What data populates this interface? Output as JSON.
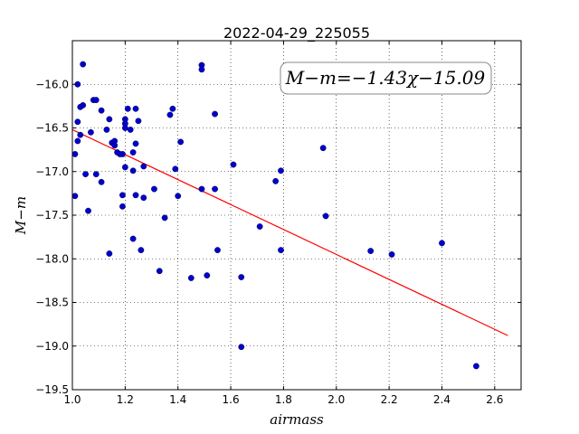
{
  "chart_data": {
    "type": "scatter",
    "title": "2022-04-29_225055",
    "xlabel": "airmass",
    "ylabel": "M−m",
    "xlim": [
      1.0,
      2.7
    ],
    "ylim": [
      -19.5,
      -15.5
    ],
    "y_inverted": true,
    "grid": true,
    "grid_style": "dotted",
    "x_ticks": [
      "1.0",
      "1.2",
      "1.4",
      "1.6",
      "1.8",
      "2.0",
      "2.2",
      "2.4",
      "2.6"
    ],
    "x_tick_values": [
      1.0,
      1.2,
      1.4,
      1.6,
      1.8,
      2.0,
      2.2,
      2.4,
      2.6
    ],
    "y_ticks": [
      "−16.0",
      "−16.5",
      "−17.0",
      "−17.5",
      "−18.0",
      "−18.5",
      "−19.0",
      "−19.5"
    ],
    "y_tick_values": [
      -16.0,
      -16.5,
      -17.0,
      -17.5,
      -18.0,
      -18.5,
      -19.0,
      -19.5
    ],
    "annotation": "M−m=−1.43χ−15.09",
    "annotation_placement": "top-right",
    "point_color": "#0000cc",
    "line_color": "#ff0000",
    "fit": {
      "slope": -1.43,
      "intercept": -15.09,
      "x_range": [
        1.0,
        2.65
      ]
    },
    "points": [
      [
        1.01,
        -17.28
      ],
      [
        1.01,
        -16.8
      ],
      [
        1.02,
        -16.65
      ],
      [
        1.02,
        -16.43
      ],
      [
        1.02,
        -16.0
      ],
      [
        1.03,
        -16.26
      ],
      [
        1.03,
        -16.58
      ],
      [
        1.04,
        -16.24
      ],
      [
        1.04,
        -15.77
      ],
      [
        1.05,
        -17.03
      ],
      [
        1.06,
        -17.45
      ],
      [
        1.07,
        -16.55
      ],
      [
        1.08,
        -16.18
      ],
      [
        1.09,
        -16.18
      ],
      [
        1.09,
        -17.03
      ],
      [
        1.11,
        -16.3
      ],
      [
        1.11,
        -17.12
      ],
      [
        1.13,
        -16.52
      ],
      [
        1.14,
        -17.94
      ],
      [
        1.14,
        -16.4
      ],
      [
        1.15,
        -16.67
      ],
      [
        1.16,
        -16.65
      ],
      [
        1.16,
        -16.7
      ],
      [
        1.17,
        -16.78
      ],
      [
        1.18,
        -16.8
      ],
      [
        1.19,
        -17.27
      ],
      [
        1.19,
        -17.4
      ],
      [
        1.19,
        -16.8
      ],
      [
        1.2,
        -16.45
      ],
      [
        1.2,
        -16.5
      ],
      [
        1.2,
        -16.95
      ],
      [
        1.2,
        -16.4
      ],
      [
        1.21,
        -16.28
      ],
      [
        1.22,
        -16.52
      ],
      [
        1.23,
        -16.78
      ],
      [
        1.23,
        -16.99
      ],
      [
        1.23,
        -17.77
      ],
      [
        1.24,
        -16.68
      ],
      [
        1.24,
        -16.28
      ],
      [
        1.24,
        -17.27
      ],
      [
        1.25,
        -16.42
      ],
      [
        1.26,
        -17.9
      ],
      [
        1.27,
        -17.3
      ],
      [
        1.27,
        -16.94
      ],
      [
        1.31,
        -17.2
      ],
      [
        1.33,
        -18.14
      ],
      [
        1.35,
        -17.53
      ],
      [
        1.37,
        -16.35
      ],
      [
        1.38,
        -16.28
      ],
      [
        1.39,
        -16.97
      ],
      [
        1.4,
        -17.28
      ],
      [
        1.41,
        -16.66
      ],
      [
        1.45,
        -18.22
      ],
      [
        1.49,
        -15.78
      ],
      [
        1.49,
        -15.83
      ],
      [
        1.49,
        -17.2
      ],
      [
        1.51,
        -18.19
      ],
      [
        1.54,
        -16.34
      ],
      [
        1.54,
        -17.2
      ],
      [
        1.55,
        -17.9
      ],
      [
        1.61,
        -16.92
      ],
      [
        1.64,
        -18.21
      ],
      [
        1.64,
        -19.01
      ],
      [
        1.71,
        -17.63
      ],
      [
        1.77,
        -17.11
      ],
      [
        1.79,
        -16.99
      ],
      [
        1.79,
        -17.9
      ],
      [
        1.95,
        -16.73
      ],
      [
        1.96,
        -17.51
      ],
      [
        2.13,
        -17.91
      ],
      [
        2.21,
        -17.95
      ],
      [
        2.4,
        -17.82
      ],
      [
        2.53,
        -19.23
      ]
    ]
  }
}
